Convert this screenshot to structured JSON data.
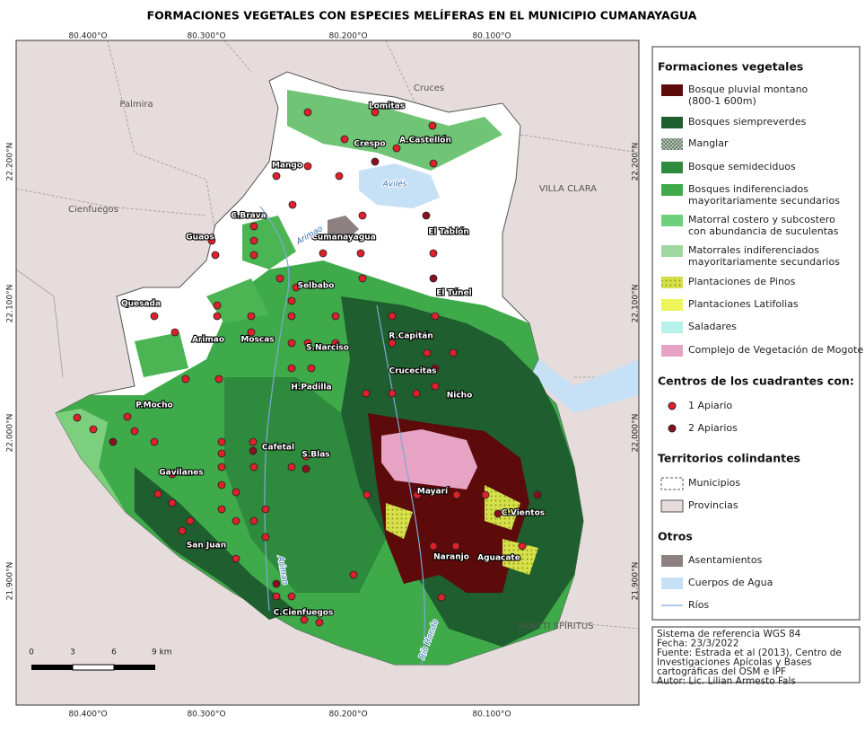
{
  "title": "FORMACIONES VEGETALES CON ESPECIES MELÍFERAS EN EL MUNICIPIO CUMANAYAGUA",
  "map": {
    "lon_labels": [
      "80.400°O",
      "80.300°O",
      "80.200°O",
      "80.100°O"
    ],
    "lat_labels": [
      "22.200°N",
      "22.100°N",
      "22.000°N",
      "21.900°N"
    ],
    "regions": [
      "Palmira",
      "Cruces",
      "Cienfuegos",
      "VILLA CLARA",
      "SANCTI SPÍRITUS"
    ],
    "localities": [
      "Lomitas",
      "Crespo",
      "A.Castellón",
      "Mango",
      "C.Brava",
      "Guaos",
      "Cumanayagua",
      "El Tablón",
      "Selbabo",
      "El Túnel",
      "Quesada",
      "Arimao",
      "Moscas",
      "S.Narciso",
      "R.Capitán",
      "Crucecitas",
      "H.Padilla",
      "Nicho",
      "P.Mocho",
      "Cafetal",
      "S.Blas",
      "Gavilanes",
      "Mayarí",
      "C.Vientos",
      "San Juan",
      "Naranjo",
      "Aguacate",
      "C.Cienfuegos"
    ],
    "water": [
      "Avilés",
      "Arimao",
      "Arimao",
      "Río Hondo"
    ],
    "scale": [
      "0",
      "3",
      "6",
      "9 km"
    ]
  },
  "legend": {
    "vegetation_title": "Formaciones vegetales",
    "vegetation": [
      [
        "Bosque pluvial montano",
        "(800-1 600m)"
      ],
      [
        "Bosques siempreverdes"
      ],
      [
        "Manglar"
      ],
      [
        "Bosque semideciduos"
      ],
      [
        "Bosques indiferenciados",
        "mayoritariamente secundarios"
      ],
      [
        "Matorral costero y  subcostero",
        "con abundancia de suculentas"
      ],
      [
        "Matorrales indiferenciados",
        "mayoritariamente  secundarios"
      ],
      [
        "Plantaciones de Pinos"
      ],
      [
        "Plantaciones Latifolias"
      ],
      [
        "Saladares"
      ],
      [
        "Complejo de Vegetación de Mogote"
      ]
    ],
    "centers_title": "Centros de los cuadrantes con:",
    "centers": [
      "1 Apiario",
      "2 Apiarios"
    ],
    "territories_title": "Territorios colindantes",
    "territories": [
      "Municipios",
      "Provincias"
    ],
    "others_title": "Otros",
    "others": [
      "Asentamientos",
      "Cuerpos de Agua",
      "Ríos"
    ]
  },
  "info": [
    "Sistema de referencia WGS 84",
    "Fecha: 23/3/2022",
    "Fuente: Estrada et al (2013), Centro de",
    "Investigaciones Apícolas y Bases",
    "cartográficas del OSM e IPF",
    "Autor: Lic. Lilian Armesto Fals"
  ]
}
